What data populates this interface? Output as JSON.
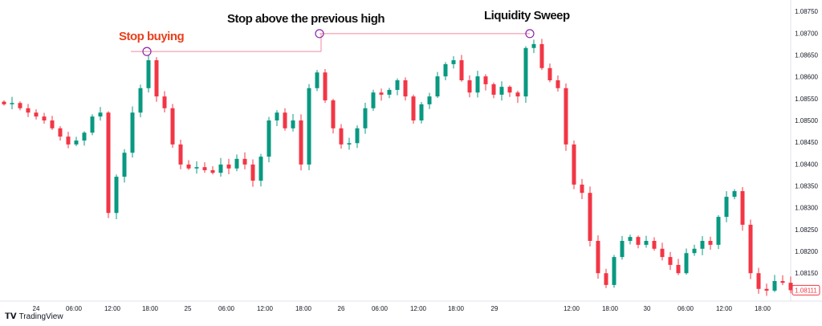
{
  "chart_data": {
    "type": "candlestick",
    "title": "",
    "ylim": [
      1.08086,
      1.08776
    ],
    "y_ticks": [
      "1.08750",
      "1.08700",
      "1.08650",
      "1.08600",
      "1.08550",
      "1.08500",
      "1.08450",
      "1.08400",
      "1.08350",
      "1.08300",
      "1.08250",
      "1.08200",
      "1.08150"
    ],
    "x_ticks": [
      {
        "label": "24",
        "index": 4
      },
      {
        "label": "06:00",
        "index": 8.7
      },
      {
        "label": "12:00",
        "index": 13.5
      },
      {
        "label": "18:00",
        "index": 18.2
      },
      {
        "label": "25",
        "index": 22.9
      },
      {
        "label": "06:00",
        "index": 27.7
      },
      {
        "label": "12:00",
        "index": 32.5
      },
      {
        "label": "18:00",
        "index": 37.3
      },
      {
        "label": "26",
        "index": 42
      },
      {
        "label": "06:00",
        "index": 46.8
      },
      {
        "label": "12:00",
        "index": 51.6
      },
      {
        "label": "18:00",
        "index": 56.3
      },
      {
        "label": "29",
        "index": 61.1
      },
      {
        "label": "12:00",
        "index": 70.7
      },
      {
        "label": "18:00",
        "index": 75.5
      },
      {
        "label": "30",
        "index": 80.1
      },
      {
        "label": "06:00",
        "index": 84.9
      },
      {
        "label": "12:00",
        "index": 89.7
      },
      {
        "label": "18:00",
        "index": 94.5
      }
    ],
    "closes": [
      1.08537,
      1.0854,
      1.08528,
      1.08518,
      1.08509,
      1.085,
      1.08482,
      1.08463,
      1.08445,
      1.08454,
      1.08472,
      1.08509,
      1.08518,
      1.08288,
      1.08371,
      1.08426,
      1.08518,
      1.08574,
      1.08638,
      1.08555,
      1.08528,
      1.08445,
      1.08399,
      1.0839,
      1.08393,
      1.08386,
      1.0838,
      1.08399,
      1.0839,
      1.08412,
      1.08399,
      1.08362,
      1.08417,
      1.085,
      1.08518,
      1.08482,
      1.085,
      1.08399,
      1.08574,
      1.0861,
      1.08546,
      1.08482,
      1.08445,
      1.08448,
      1.08482,
      1.08528,
      1.08564,
      1.08559,
      1.0857,
      1.08592,
      1.08555,
      1.085,
      1.08537,
      1.08555,
      1.08601,
      1.08629,
      1.08638,
      1.08592,
      1.08564,
      1.08601,
      1.08583,
      1.08559,
      1.08577,
      1.08564,
      1.08555,
      1.08666,
      1.08675,
      1.0862,
      1.08592,
      1.08574,
      1.08445,
      1.08353,
      1.08334,
      1.08224,
      1.0815,
      1.08123,
      1.08187,
      1.08224,
      1.08233,
      1.08215,
      1.08224,
      1.08206,
      1.08187,
      1.08169,
      1.0815,
      1.08196,
      1.08206,
      1.08224,
      1.08215,
      1.08279,
      1.08325,
      1.08338,
      1.08261,
      1.0815,
      1.08114,
      1.0811,
      1.08132,
      1.08128,
      1.08111
    ],
    "last_price": "1.08111",
    "annotations": [
      {
        "text": "Stop buying",
        "index": 17.8,
        "price": 1.08658,
        "color": "#e8401c"
      },
      {
        "text": "Stop above the previous high",
        "index": 39.3,
        "price": 1.08699,
        "color": "#111111"
      },
      {
        "text": "Liquidity Sweep",
        "index": 65.5,
        "price": 1.08699,
        "color": "#111111"
      }
    ],
    "colors": {
      "up": "#089981",
      "down": "#f23645",
      "level_line": "#ef8aa0",
      "marker": "#8e24aa"
    }
  },
  "branding": {
    "logo_text": "TradingView"
  }
}
